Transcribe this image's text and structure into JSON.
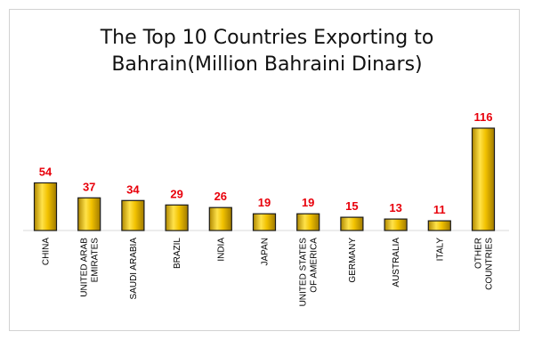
{
  "chart_data": {
    "type": "bar",
    "title_line1": "The Top 10 Countries Exporting to",
    "title_line2": "Bahrain(Million Bahraini Dinars)",
    "categories": [
      [
        "CHINA"
      ],
      [
        "UNITED ARAB",
        "EMIRATES"
      ],
      [
        "SAUDI ARABIA"
      ],
      [
        "BRAZIL"
      ],
      [
        "INDIA"
      ],
      [
        "JAPAN"
      ],
      [
        "UNITED STATES",
        "OF AMERICA"
      ],
      [
        "GERMANY"
      ],
      [
        "AUSTRALIA"
      ],
      [
        "ITALY"
      ],
      [
        "OTHER",
        "COUNTRIES"
      ]
    ],
    "values": [
      54,
      37,
      34,
      29,
      26,
      19,
      19,
      15,
      13,
      11,
      116
    ],
    "ylim": [
      0,
      116
    ],
    "grid": false,
    "data_labels": true,
    "bar_color": "#f2c200",
    "bar_edge_color": "#1a1a1a",
    "label_color": "#e8000b"
  }
}
